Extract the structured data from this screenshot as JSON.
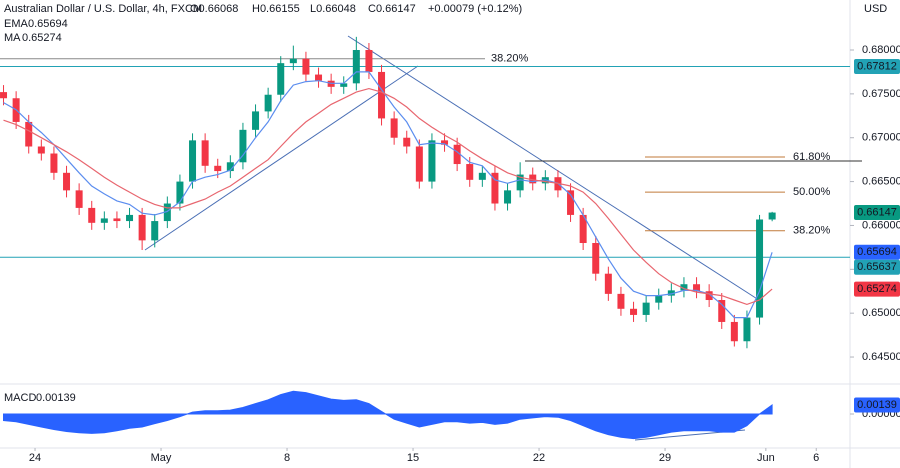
{
  "chart_data": {
    "type": "candlestick",
    "title": "Australian Dollar / U.S. Dollar, 4h, FXCM",
    "ohlc_text": [
      "O0.66068",
      "H0.66155",
      "L0.66048",
      "C0.66147",
      "+0.00079 (+0.12%)"
    ],
    "currency": "USD",
    "up_color": "#089981",
    "down_color": "#f23645",
    "x": [
      -1.25,
      -0.75,
      -0.25,
      0.25,
      0.75,
      1.25,
      1.75,
      2.25,
      2.75,
      3.25,
      3.75,
      4.25,
      4.75,
      5.25,
      5.75,
      6.25,
      6.75,
      7.25,
      7.75,
      8.25,
      8.75,
      9.25,
      9.75,
      10.25,
      10.75,
      11.25,
      11.75,
      12.25,
      12.75,
      13.25,
      13.75,
      14.25,
      14.75,
      15.25,
      15.75,
      16.25,
      16.75,
      17.25,
      17.75,
      18.25,
      18.75,
      19.25,
      19.75,
      20.25,
      20.75,
      21.25,
      21.75,
      22.25,
      22.75,
      23.25,
      23.75,
      24.25,
      24.75,
      25.25,
      25.75,
      26.25,
      26.75,
      27.25,
      27.75,
      28.25,
      28.75,
      29.25
    ],
    "open": [
      0.6752,
      0.6745,
      0.6718,
      0.669,
      0.6682,
      0.666,
      0.664,
      0.662,
      0.6603,
      0.6608,
      0.6605,
      0.6612,
      0.6583,
      0.6605,
      0.6625,
      0.665,
      0.6697,
      0.6668,
      0.6662,
      0.6672,
      0.6709,
      0.673,
      0.6749,
      0.6785,
      0.679,
      0.6772,
      0.6765,
      0.6758,
      0.6762,
      0.68,
      0.6775,
      0.6722,
      0.67,
      0.669,
      0.665,
      0.6697,
      0.6692,
      0.667,
      0.6652,
      0.666,
      0.6625,
      0.664,
      0.6658,
      0.6648,
      0.6655,
      0.664,
      0.6612,
      0.658,
      0.6545,
      0.6522,
      0.6505,
      0.6498,
      0.6512,
      0.652,
      0.6526,
      0.6533,
      0.6525,
      0.6515,
      0.649,
      0.6468,
      0.6495,
      0.66068
    ],
    "high": [
      0.676,
      0.6753,
      0.6726,
      0.6698,
      0.669,
      0.6668,
      0.6648,
      0.6628,
      0.6616,
      0.6616,
      0.662,
      0.662,
      0.6613,
      0.6633,
      0.6658,
      0.6705,
      0.6705,
      0.6676,
      0.668,
      0.6717,
      0.6738,
      0.6757,
      0.6793,
      0.6805,
      0.6798,
      0.678,
      0.6773,
      0.677,
      0.6815,
      0.6808,
      0.6783,
      0.673,
      0.6708,
      0.6698,
      0.6705,
      0.6705,
      0.67,
      0.6678,
      0.6668,
      0.6668,
      0.6648,
      0.6672,
      0.6666,
      0.6663,
      0.6663,
      0.6648,
      0.662,
      0.6588,
      0.6553,
      0.653,
      0.6513,
      0.652,
      0.6528,
      0.6534,
      0.6541,
      0.6541,
      0.6533,
      0.6523,
      0.6498,
      0.6503,
      0.6612,
      0.66155
    ],
    "low": [
      0.6737,
      0.671,
      0.6682,
      0.6674,
      0.6652,
      0.6632,
      0.6612,
      0.6595,
      0.6595,
      0.6597,
      0.6597,
      0.6572,
      0.6575,
      0.6597,
      0.6617,
      0.6642,
      0.666,
      0.6654,
      0.6654,
      0.6664,
      0.6701,
      0.6722,
      0.6741,
      0.6777,
      0.6764,
      0.6757,
      0.675,
      0.675,
      0.6754,
      0.6767,
      0.6714,
      0.6692,
      0.6682,
      0.6642,
      0.6642,
      0.6684,
      0.6662,
      0.6644,
      0.6644,
      0.6617,
      0.6617,
      0.6632,
      0.664,
      0.664,
      0.6632,
      0.6604,
      0.6572,
      0.6537,
      0.6514,
      0.6497,
      0.649,
      0.649,
      0.6504,
      0.6512,
      0.6518,
      0.6517,
      0.6507,
      0.6482,
      0.6462,
      0.646,
      0.6487,
      0.66048
    ],
    "close": [
      0.6745,
      0.6718,
      0.669,
      0.6682,
      0.666,
      0.664,
      0.662,
      0.6603,
      0.6608,
      0.6605,
      0.6612,
      0.6583,
      0.6605,
      0.6625,
      0.665,
      0.6697,
      0.6668,
      0.6662,
      0.6672,
      0.6709,
      0.673,
      0.6749,
      0.6785,
      0.679,
      0.6772,
      0.6765,
      0.6758,
      0.6762,
      0.68,
      0.6775,
      0.6722,
      0.67,
      0.669,
      0.665,
      0.6697,
      0.6692,
      0.667,
      0.6652,
      0.666,
      0.6625,
      0.664,
      0.6658,
      0.6648,
      0.6655,
      0.664,
      0.6612,
      0.658,
      0.6545,
      0.6522,
      0.6505,
      0.6498,
      0.6512,
      0.652,
      0.6526,
      0.6533,
      0.6525,
      0.6515,
      0.649,
      0.6468,
      0.6495,
      0.66068,
      0.66147
    ],
    "series": [
      {
        "name": "EMA",
        "value_label": "0.65694",
        "color": "#5b8def",
        "values": [
          0.674,
          0.6732,
          0.6718,
          0.6706,
          0.6692,
          0.6676,
          0.666,
          0.6645,
          0.6636,
          0.6628,
          0.6624,
          0.6614,
          0.6612,
          0.6616,
          0.6627,
          0.665,
          0.6655,
          0.6658,
          0.6663,
          0.668,
          0.67,
          0.6718,
          0.6742,
          0.676,
          0.6764,
          0.6765,
          0.6762,
          0.6762,
          0.6775,
          0.6775,
          0.6755,
          0.6735,
          0.6718,
          0.6692,
          0.6694,
          0.6693,
          0.6684,
          0.6672,
          0.6668,
          0.6652,
          0.6648,
          0.6652,
          0.665,
          0.6652,
          0.6648,
          0.6635,
          0.6612,
          0.6587,
          0.6562,
          0.654,
          0.6525,
          0.652,
          0.652,
          0.6522,
          0.6526,
          0.6526,
          0.6522,
          0.651,
          0.6495,
          0.6495,
          0.6525,
          0.65694
        ]
      },
      {
        "name": "MA",
        "value_label": "0.65274",
        "color": "#e8666f",
        "values": [
          0.672,
          0.6715,
          0.6708,
          0.67,
          0.6692,
          0.6684,
          0.6675,
          0.6665,
          0.6655,
          0.6646,
          0.6638,
          0.663,
          0.6624,
          0.662,
          0.662,
          0.6625,
          0.663,
          0.6638,
          0.6645,
          0.6655,
          0.6665,
          0.6675,
          0.669,
          0.6705,
          0.6718,
          0.6728,
          0.6738,
          0.6745,
          0.6752,
          0.6756,
          0.6752,
          0.6745,
          0.6735,
          0.6722,
          0.6712,
          0.6703,
          0.6695,
          0.6685,
          0.6676,
          0.6668,
          0.666,
          0.6655,
          0.6652,
          0.665,
          0.6648,
          0.6645,
          0.6638,
          0.6625,
          0.6608,
          0.659,
          0.6572,
          0.6558,
          0.6545,
          0.6535,
          0.6528,
          0.6524,
          0.6522,
          0.652,
          0.6515,
          0.651,
          0.6515,
          0.65274
        ]
      }
    ],
    "ylim": [
      0.64204,
      0.6857
    ],
    "yticks": [
      {
        "value": 0.645,
        "label": "0.64500"
      },
      {
        "value": 0.65,
        "label": "0.65000"
      },
      {
        "value": 0.655,
        "label": "0.65500"
      },
      {
        "value": 0.66,
        "label": "0.66000"
      },
      {
        "value": 0.665,
        "label": "0.66500"
      },
      {
        "value": 0.67,
        "label": "0.67000"
      },
      {
        "value": 0.675,
        "label": "0.67500"
      },
      {
        "value": 0.68,
        "label": "0.68000"
      }
    ],
    "xlim": [
      -1.39,
      32.26
    ],
    "xticks": [
      {
        "value": 0,
        "label": "24"
      },
      {
        "value": 5,
        "label": "May"
      },
      {
        "value": 10,
        "label": "8"
      },
      {
        "value": 15,
        "label": "15"
      },
      {
        "value": 20,
        "label": "22"
      },
      {
        "value": 25,
        "label": "29"
      },
      {
        "value": 29,
        "label": "Jun"
      },
      {
        "value": 31,
        "label": "6"
      }
    ],
    "markers": [
      {
        "value": 0.67812,
        "label": "0.67812",
        "color": "#22a2b5",
        "line": true
      },
      {
        "value": 0.66147,
        "label": "0.66147",
        "color": "#089981",
        "line": false
      },
      {
        "value": 0.65694,
        "label": "0.65694",
        "color": "#2962ff",
        "line": false
      },
      {
        "value": 0.65637,
        "label": "0.65637",
        "color": "#22a2b5",
        "line": true
      },
      {
        "value": 0.65274,
        "label": "0.65274",
        "color": "#f23645",
        "line": false
      }
    ],
    "fib_left": {
      "value": 0.679,
      "label": "38.20%",
      "color": "#7b56b8"
    },
    "fib_right": [
      {
        "value": 0.6678,
        "label": "61.80%",
        "color": "#c17a3a"
      },
      {
        "value": 0.6638,
        "label": "50.00%",
        "color": "#c17a3a"
      },
      {
        "value": 0.6594,
        "label": "38.20%",
        "color": "#c17a3a"
      }
    ],
    "macd": {
      "name": "MACD",
      "value_label": "0.00139",
      "color": "#2962ff",
      "values": [
        -0.001,
        -0.0012,
        -0.0016,
        -0.002,
        -0.0024,
        -0.0027,
        -0.0029,
        -0.003,
        -0.0029,
        -0.0026,
        -0.0022,
        -0.002,
        -0.0015,
        -0.001,
        -0.0004,
        0.0003,
        0.0005,
        0.0005,
        0.0006,
        0.001,
        0.0016,
        0.0022,
        0.003,
        0.0035,
        0.0033,
        0.0028,
        0.0023,
        0.0021,
        0.0022,
        0.0016,
        0.0004,
        -0.0008,
        -0.0014,
        -0.002,
        -0.0016,
        -0.0012,
        -0.0012,
        -0.0014,
        -0.0013,
        -0.0016,
        -0.0014,
        -0.0008,
        -0.0006,
        -0.0004,
        -0.0005,
        -0.001,
        -0.0018,
        -0.0026,
        -0.0032,
        -0.0036,
        -0.0038,
        -0.0036,
        -0.0032,
        -0.0028,
        -0.0026,
        -0.0026,
        -0.0026,
        -0.0028,
        -0.0028,
        -0.0018,
        0.0,
        0.00139
      ],
      "ylim": [
        -0.00525,
        0.00448
      ],
      "yticks": [
        {
          "value": 0,
          "label": "0.00000"
        }
      ],
      "marker": {
        "value": 0.00139,
        "label": "0.00139"
      }
    }
  }
}
